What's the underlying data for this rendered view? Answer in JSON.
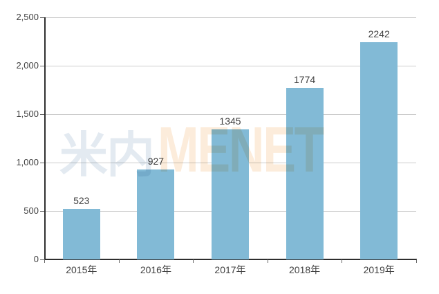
{
  "chart_data": {
    "type": "bar",
    "categories": [
      "2015年",
      "2016年",
      "2017年",
      "2018年",
      "2019年"
    ],
    "values": [
      523,
      927,
      1345,
      1774,
      2242
    ],
    "value_labels": [
      "523",
      "927",
      "1345",
      "1774",
      "2242"
    ],
    "title": "",
    "xlabel": "",
    "ylabel": "",
    "ylim": [
      0,
      2500
    ],
    "yticks": [
      0,
      500,
      1000,
      1500,
      2000,
      2500
    ],
    "ytick_labels": [
      "0",
      "500",
      "1,000",
      "1,500",
      "2,000",
      "2,500"
    ],
    "grid": true,
    "legend_position": "none",
    "bar_color": "#82bad6"
  },
  "watermark": {
    "text_cjk": "米内",
    "text_latin": "MENET",
    "color_cjk": "#e3eaf1",
    "color_latin": "#fcecdb"
  },
  "colors": {
    "background": "#ffffff",
    "axis": "#2e2e2e",
    "gridline": "#cccccc",
    "tick": "#666666",
    "label_text": "#404040"
  }
}
